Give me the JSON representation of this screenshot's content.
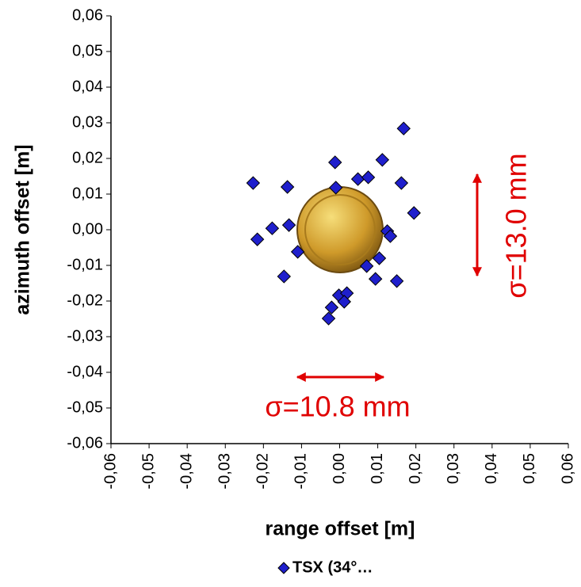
{
  "chart_data": {
    "type": "scatter",
    "xlabel": "range offset [m]",
    "ylabel": "azimuth offset [m]",
    "series": [
      {
        "name": "TSX (34°…",
        "color": "#1f1fcc",
        "x": [
          -0.0227,
          -0.0137,
          -0.0216,
          -0.0177,
          -0.0133,
          -0.0146,
          -0.011,
          -0.0012,
          0.0048,
          0.0075,
          0.0112,
          0.0168,
          0.0162,
          0.0195,
          0.0125,
          0.0133,
          0.0104,
          0.0071,
          0.0094,
          0.015,
          -0.0002,
          0.0019,
          0.0012,
          -0.0021,
          -0.0029,
          -0.001
        ],
        "values": [
          0.0131,
          0.012,
          -0.0027,
          0.0004,
          0.0013,
          -0.0131,
          -0.0062,
          0.0189,
          0.0142,
          0.0147,
          0.0196,
          0.0284,
          0.0131,
          0.0047,
          -0.0004,
          -0.0018,
          -0.008,
          -0.0102,
          -0.0138,
          -0.0144,
          -0.0184,
          -0.0178,
          -0.0202,
          -0.0218,
          -0.0249,
          0.0118
        ]
      }
    ],
    "xlim": [
      -0.06,
      0.06
    ],
    "xticks": [
      {
        "value": -0.06,
        "label": "-0,06"
      },
      {
        "value": -0.05,
        "label": "-0,05"
      },
      {
        "value": -0.04,
        "label": "-0,04"
      },
      {
        "value": -0.03,
        "label": "-0,03"
      },
      {
        "value": -0.02,
        "label": "-0,02"
      },
      {
        "value": -0.01,
        "label": "-0,01"
      },
      {
        "value": 0,
        "label": "0,00"
      },
      {
        "value": 0.01,
        "label": "0,01"
      },
      {
        "value": 0.02,
        "label": "0,02"
      },
      {
        "value": 0.03,
        "label": "0,03"
      },
      {
        "value": 0.04,
        "label": "0,04"
      },
      {
        "value": 0.05,
        "label": "0,05"
      },
      {
        "value": 0.06,
        "label": "0,06"
      }
    ],
    "ylim": [
      -0.06,
      0.06
    ],
    "yticks": [
      {
        "value": -0.06,
        "label": "-0,06"
      },
      {
        "value": -0.05,
        "label": "-0,05"
      },
      {
        "value": -0.04,
        "label": "-0,04"
      },
      {
        "value": -0.03,
        "label": "-0,03"
      },
      {
        "value": -0.02,
        "label": "-0,02"
      },
      {
        "value": -0.01,
        "label": "-0,01"
      },
      {
        "value": 0,
        "label": "0,00"
      },
      {
        "value": 0.01,
        "label": "0,01"
      },
      {
        "value": 0.02,
        "label": "0,02"
      },
      {
        "value": 0.03,
        "label": "0,03"
      },
      {
        "value": 0.04,
        "label": "0,04"
      },
      {
        "value": 0.05,
        "label": "0,05"
      },
      {
        "value": 0.06,
        "label": "0,06"
      }
    ],
    "annotations": [
      "σ=10.8 mm",
      "σ=13.0 mm"
    ]
  }
}
